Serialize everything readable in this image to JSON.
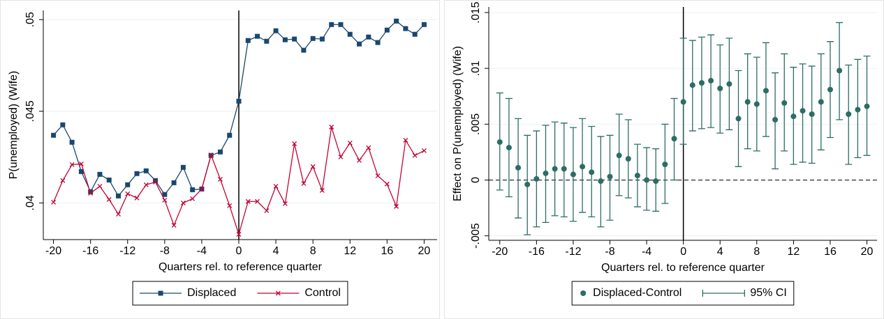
{
  "chart_data": [
    {
      "type": "line",
      "y_label": "P(unemployed) (Wife)",
      "x_label": "Quarters rel. to reference quarter",
      "x": [
        -20,
        -19,
        -18,
        -17,
        -16,
        -15,
        -14,
        -13,
        -12,
        -11,
        -10,
        -9,
        -8,
        -7,
        -6,
        -5,
        -4,
        -3,
        -2,
        -1,
        0,
        1,
        2,
        3,
        4,
        5,
        6,
        7,
        8,
        9,
        10,
        11,
        12,
        13,
        14,
        15,
        16,
        17,
        18,
        19,
        20
      ],
      "series": [
        {
          "name": "Displaced",
          "color": "#1a476f",
          "marker": "square",
          "values": [
            0.04369,
            0.04426,
            0.04331,
            0.04171,
            0.04061,
            0.04156,
            0.04125,
            0.04038,
            0.04099,
            0.0416,
            0.04175,
            0.04122,
            0.04046,
            0.0411,
            0.04194,
            0.04072,
            0.04076,
            0.04259,
            0.04278,
            0.04369,
            0.04555,
            0.04886,
            0.04909,
            0.04882,
            0.04939,
            0.0489,
            0.04894,
            0.04833,
            0.04897,
            0.04894,
            0.04973,
            0.04973,
            0.0492,
            0.04867,
            0.04905,
            0.04875,
            0.04943,
            0.04992,
            0.04951,
            0.0492,
            0.04973
          ]
        },
        {
          "name": "Control",
          "color": "#c10534",
          "marker": "x",
          "values": [
            0.04004,
            0.04122,
            0.04209,
            0.04213,
            0.04053,
            0.04091,
            0.04019,
            0.03939,
            0.0405,
            0.04027,
            0.04099,
            0.04114,
            0.04015,
            0.03878,
            0.04,
            0.04023,
            0.04076,
            0.04262,
            0.04129,
            0.03985,
            0.03829,
            0.04008,
            0.04008,
            0.03958,
            0.04091,
            0.03996,
            0.04323,
            0.04106,
            0.04198,
            0.04068,
            0.04414,
            0.04251,
            0.04327,
            0.04232,
            0.04301,
            0.04148,
            0.04103,
            0.03981,
            0.04342,
            0.04259,
            0.04285
          ]
        }
      ],
      "xlim": [
        -21.1,
        21.4
      ],
      "xticks": [
        -20,
        -16,
        -12,
        -8,
        -4,
        0,
        4,
        8,
        12,
        16,
        20
      ],
      "ylim": [
        0.038,
        0.0505
      ],
      "yticks": [
        {
          "value": 0.04,
          "label": ".04"
        },
        {
          "value": 0.045,
          "label": ".045"
        },
        {
          "value": 0.05,
          "label": ".05"
        }
      ],
      "grid": true,
      "vline": 0
    },
    {
      "type": "errorbar",
      "y_label": "Effect on P(unemployed) (Wife)",
      "x_label": "Quarters rel. to reference quarter",
      "x": [
        -20,
        -19,
        -18,
        -17,
        -16,
        -15,
        -14,
        -13,
        -12,
        -11,
        -10,
        -9,
        -8,
        -7,
        -6,
        -5,
        -4,
        -3,
        -2,
        -1,
        0,
        1,
        2,
        3,
        4,
        5,
        6,
        7,
        8,
        9,
        10,
        11,
        12,
        13,
        14,
        15,
        16,
        17,
        18,
        19,
        20
      ],
      "series": [
        {
          "name": "Displaced-Control",
          "ci_name": "95% CI",
          "color": "#2d6d66",
          "values": [
            0.0034,
            0.0029,
            0.0011,
            -0.0004,
            0.0001,
            0.0006,
            0.001,
            0.001,
            0.0005,
            0.0012,
            0.0007,
            -0.0001,
            0.0003,
            0.0022,
            0.0019,
            0.0004,
            0,
            -0.0001,
            0.0014,
            0.0037,
            0.007,
            0.0085,
            0.0087,
            0.0089,
            0.0082,
            0.0086,
            0.0055,
            0.007,
            0.0068,
            0.008,
            0.0054,
            0.0069,
            0.0057,
            0.0062,
            0.0059,
            0.007,
            0.0081,
            0.0098,
            0.0059,
            0.0063,
            0.0066
          ],
          "ci_low": [
            -0.0009,
            -0.0015,
            -0.0034,
            -0.0049,
            -0.0042,
            -0.0038,
            -0.0032,
            -0.0033,
            -0.0037,
            -0.0029,
            -0.0033,
            -0.0042,
            -0.0036,
            -0.0014,
            -0.0016,
            -0.0024,
            -0.0027,
            -0.0028,
            -0.0021,
            0,
            0.0032,
            0.0044,
            0.0046,
            0.0047,
            0.0042,
            0.0045,
            0.0012,
            0.0028,
            0.0026,
            0.0039,
            0.001,
            0.0026,
            0.0014,
            0.0016,
            0.0015,
            0.0027,
            0.0038,
            0.0054,
            0.0014,
            0.002,
            0.0022
          ],
          "ci_high": [
            0.0078,
            0.0073,
            0.0055,
            0.004,
            0.0044,
            0.0049,
            0.0052,
            0.0051,
            0.0047,
            0.0055,
            0.0048,
            0.0039,
            0.004,
            0.0059,
            0.0054,
            0.0032,
            0.0029,
            0.0028,
            0.005,
            0.0073,
            0.0127,
            0.0125,
            0.0128,
            0.013,
            0.0121,
            0.0127,
            0.0098,
            0.0113,
            0.011,
            0.0123,
            0.0096,
            0.0113,
            0.0101,
            0.0104,
            0.0102,
            0.0113,
            0.0124,
            0.0141,
            0.0103,
            0.0108,
            0.0111
          ]
        }
      ],
      "xlim": [
        -21.2,
        21.1
      ],
      "xticks": [
        -20,
        -16,
        -12,
        -8,
        -4,
        0,
        4,
        8,
        12,
        16,
        20
      ],
      "ylim": [
        -0.0054,
        0.0155
      ],
      "yticks": [
        {
          "value": -0.005,
          "label": "-.005"
        },
        0,
        {
          "value": 0.005,
          "label": ".005"
        },
        {
          "value": 0.01,
          "label": ".01"
        },
        {
          "value": 0.015,
          "label": ".015"
        }
      ],
      "grid": true,
      "vline": 0,
      "hline": 0
    }
  ]
}
